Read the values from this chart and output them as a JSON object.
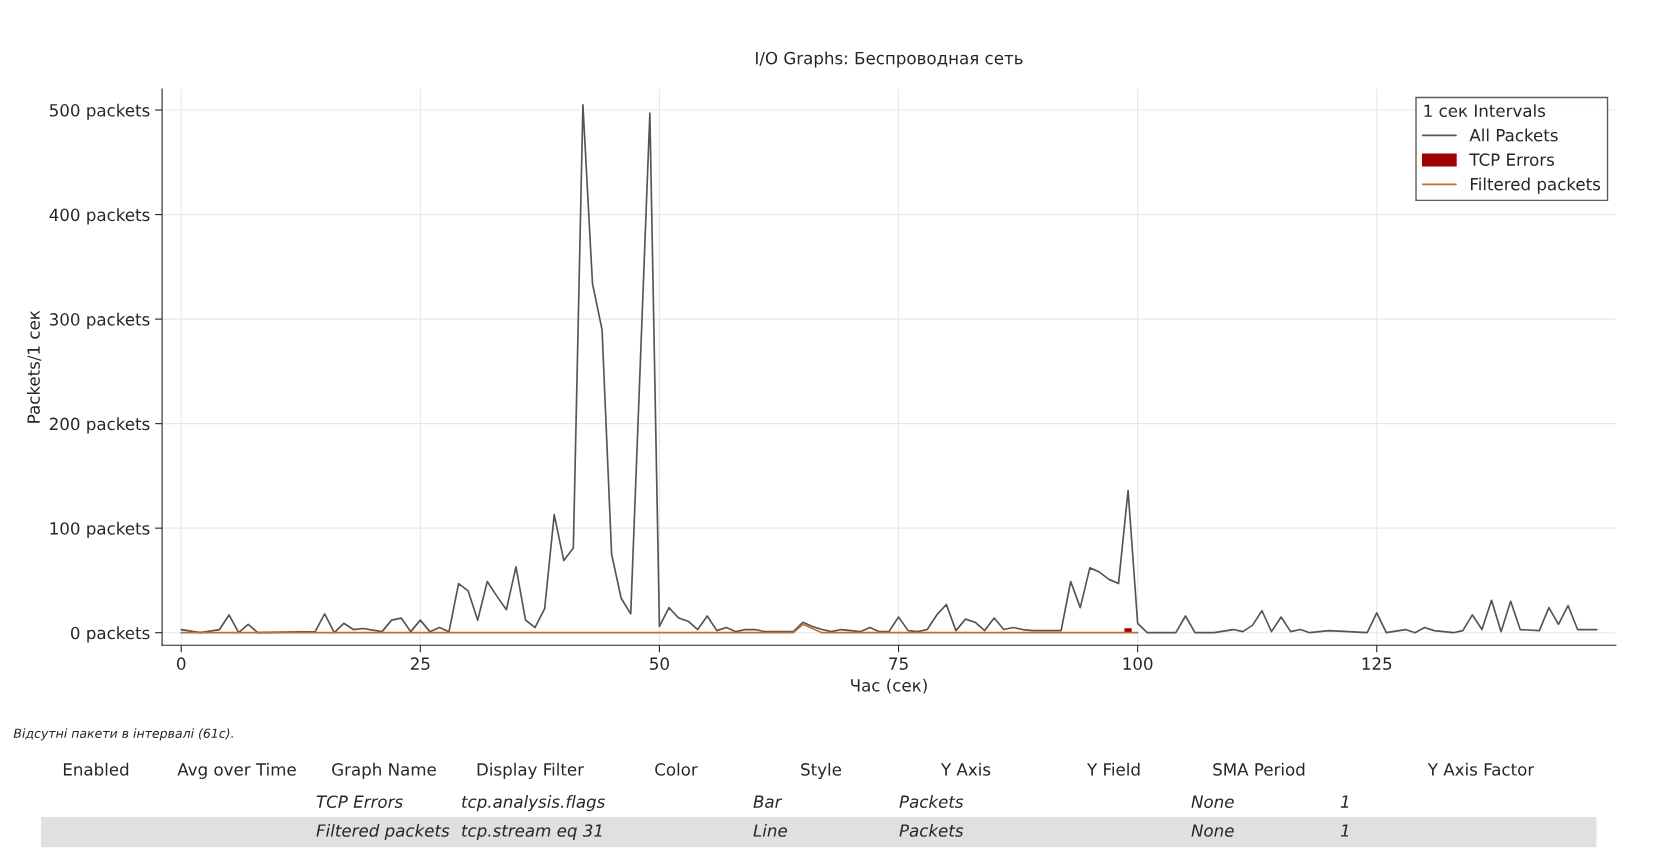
{
  "chart_data": {
    "type": "line",
    "title": "I/O Graphs: Беспроводная сеть",
    "xlabel": "Час (сек)",
    "ylabel": "Packets/1 сек",
    "legend_title": "1 сек Intervals",
    "xlim": [
      -2,
      150
    ],
    "xticks": [
      0,
      25,
      50,
      75,
      100,
      125
    ],
    "ylim": [
      -12,
      520
    ],
    "yticks": [
      {
        "value": 0,
        "label": "0 packets"
      },
      {
        "value": 100,
        "label": "100 packets"
      },
      {
        "value": 200,
        "label": "200 packets"
      },
      {
        "value": 300,
        "label": "300 packets"
      },
      {
        "value": 400,
        "label": "400 packets"
      },
      {
        "value": 500,
        "label": "500 packets"
      }
    ],
    "grid": true,
    "legend": "top right",
    "series": [
      {
        "name": "All Packets",
        "color": "#555555",
        "x": [
          0,
          2,
          4,
          5,
          6,
          7,
          8,
          14,
          15,
          16,
          17,
          18,
          19,
          21,
          22,
          23,
          24,
          25,
          26,
          27,
          28,
          29,
          30,
          31,
          32,
          33,
          34,
          35,
          36,
          37,
          38,
          39,
          40,
          41,
          42,
          43,
          44,
          45,
          46,
          47,
          49,
          50,
          51,
          52,
          53,
          54,
          55,
          56,
          57,
          58,
          59,
          60,
          61,
          62,
          63,
          64,
          65,
          66,
          67,
          68,
          69,
          70,
          71,
          72,
          73,
          74,
          75,
          76,
          77,
          78,
          79,
          80,
          81,
          82,
          83,
          84,
          85,
          86,
          87,
          88,
          89,
          90,
          91,
          92,
          93,
          94,
          95,
          96,
          97,
          98,
          99,
          100,
          101,
          104,
          105,
          106,
          108,
          110,
          111,
          112,
          113,
          114,
          115,
          116,
          117,
          118,
          120,
          124,
          125,
          126,
          128,
          129,
          130,
          131,
          133,
          134,
          135,
          136,
          137,
          138,
          139,
          140,
          142,
          143,
          144,
          145,
          146,
          148
        ],
        "values": [
          3,
          0,
          3,
          17,
          0,
          8,
          0,
          1,
          18,
          0,
          9,
          3,
          4,
          1,
          12,
          14,
          1,
          12,
          1,
          5,
          1,
          47,
          40,
          12,
          49,
          35,
          22,
          63,
          12,
          5,
          23,
          113,
          69,
          81,
          505,
          334,
          290,
          75,
          33,
          18,
          497,
          6,
          24,
          14,
          11,
          3,
          16,
          2,
          5,
          1,
          3,
          3,
          1,
          1,
          1,
          1,
          10,
          6,
          3,
          1,
          3,
          2,
          1,
          5,
          1,
          1,
          15,
          2,
          1,
          3,
          17,
          27,
          2,
          13,
          10,
          2,
          14,
          3,
          5,
          3,
          2,
          2,
          2,
          2,
          49,
          24,
          62,
          58,
          51,
          47,
          136,
          9,
          0,
          0,
          16,
          0,
          0,
          3,
          1,
          7,
          21,
          1,
          15,
          1,
          3,
          0,
          2,
          0,
          19,
          0,
          3,
          0,
          5,
          2,
          0,
          2,
          17,
          3,
          31,
          1,
          30,
          3,
          2,
          24,
          8,
          26,
          3,
          3
        ]
      },
      {
        "name": "TCP Errors",
        "type": "bar",
        "color": "#a00000",
        "x": [
          99
        ],
        "values": [
          5
        ]
      },
      {
        "name": "Filtered packets",
        "color": "#c0703a",
        "x": [
          0,
          64,
          65,
          67,
          100
        ],
        "values": [
          0,
          0,
          8,
          0,
          0
        ]
      }
    ],
    "annotations": [
      "Відсутні пакети в інтервалі (61с).",
      "Enabled",
      "Avg over Time",
      "Graph Name",
      "Display Filter",
      "Color",
      "Style",
      "Y Axis",
      "Y Field",
      "SMA Period",
      "Y Axis Factor",
      "TCP Errors",
      "tcp.analysis.flags",
      "Bar",
      "Packets",
      "None",
      "1",
      "Filtered packets",
      "tcp.stream eq 31",
      "Line",
      "Packets",
      "None",
      "1"
    ]
  }
}
